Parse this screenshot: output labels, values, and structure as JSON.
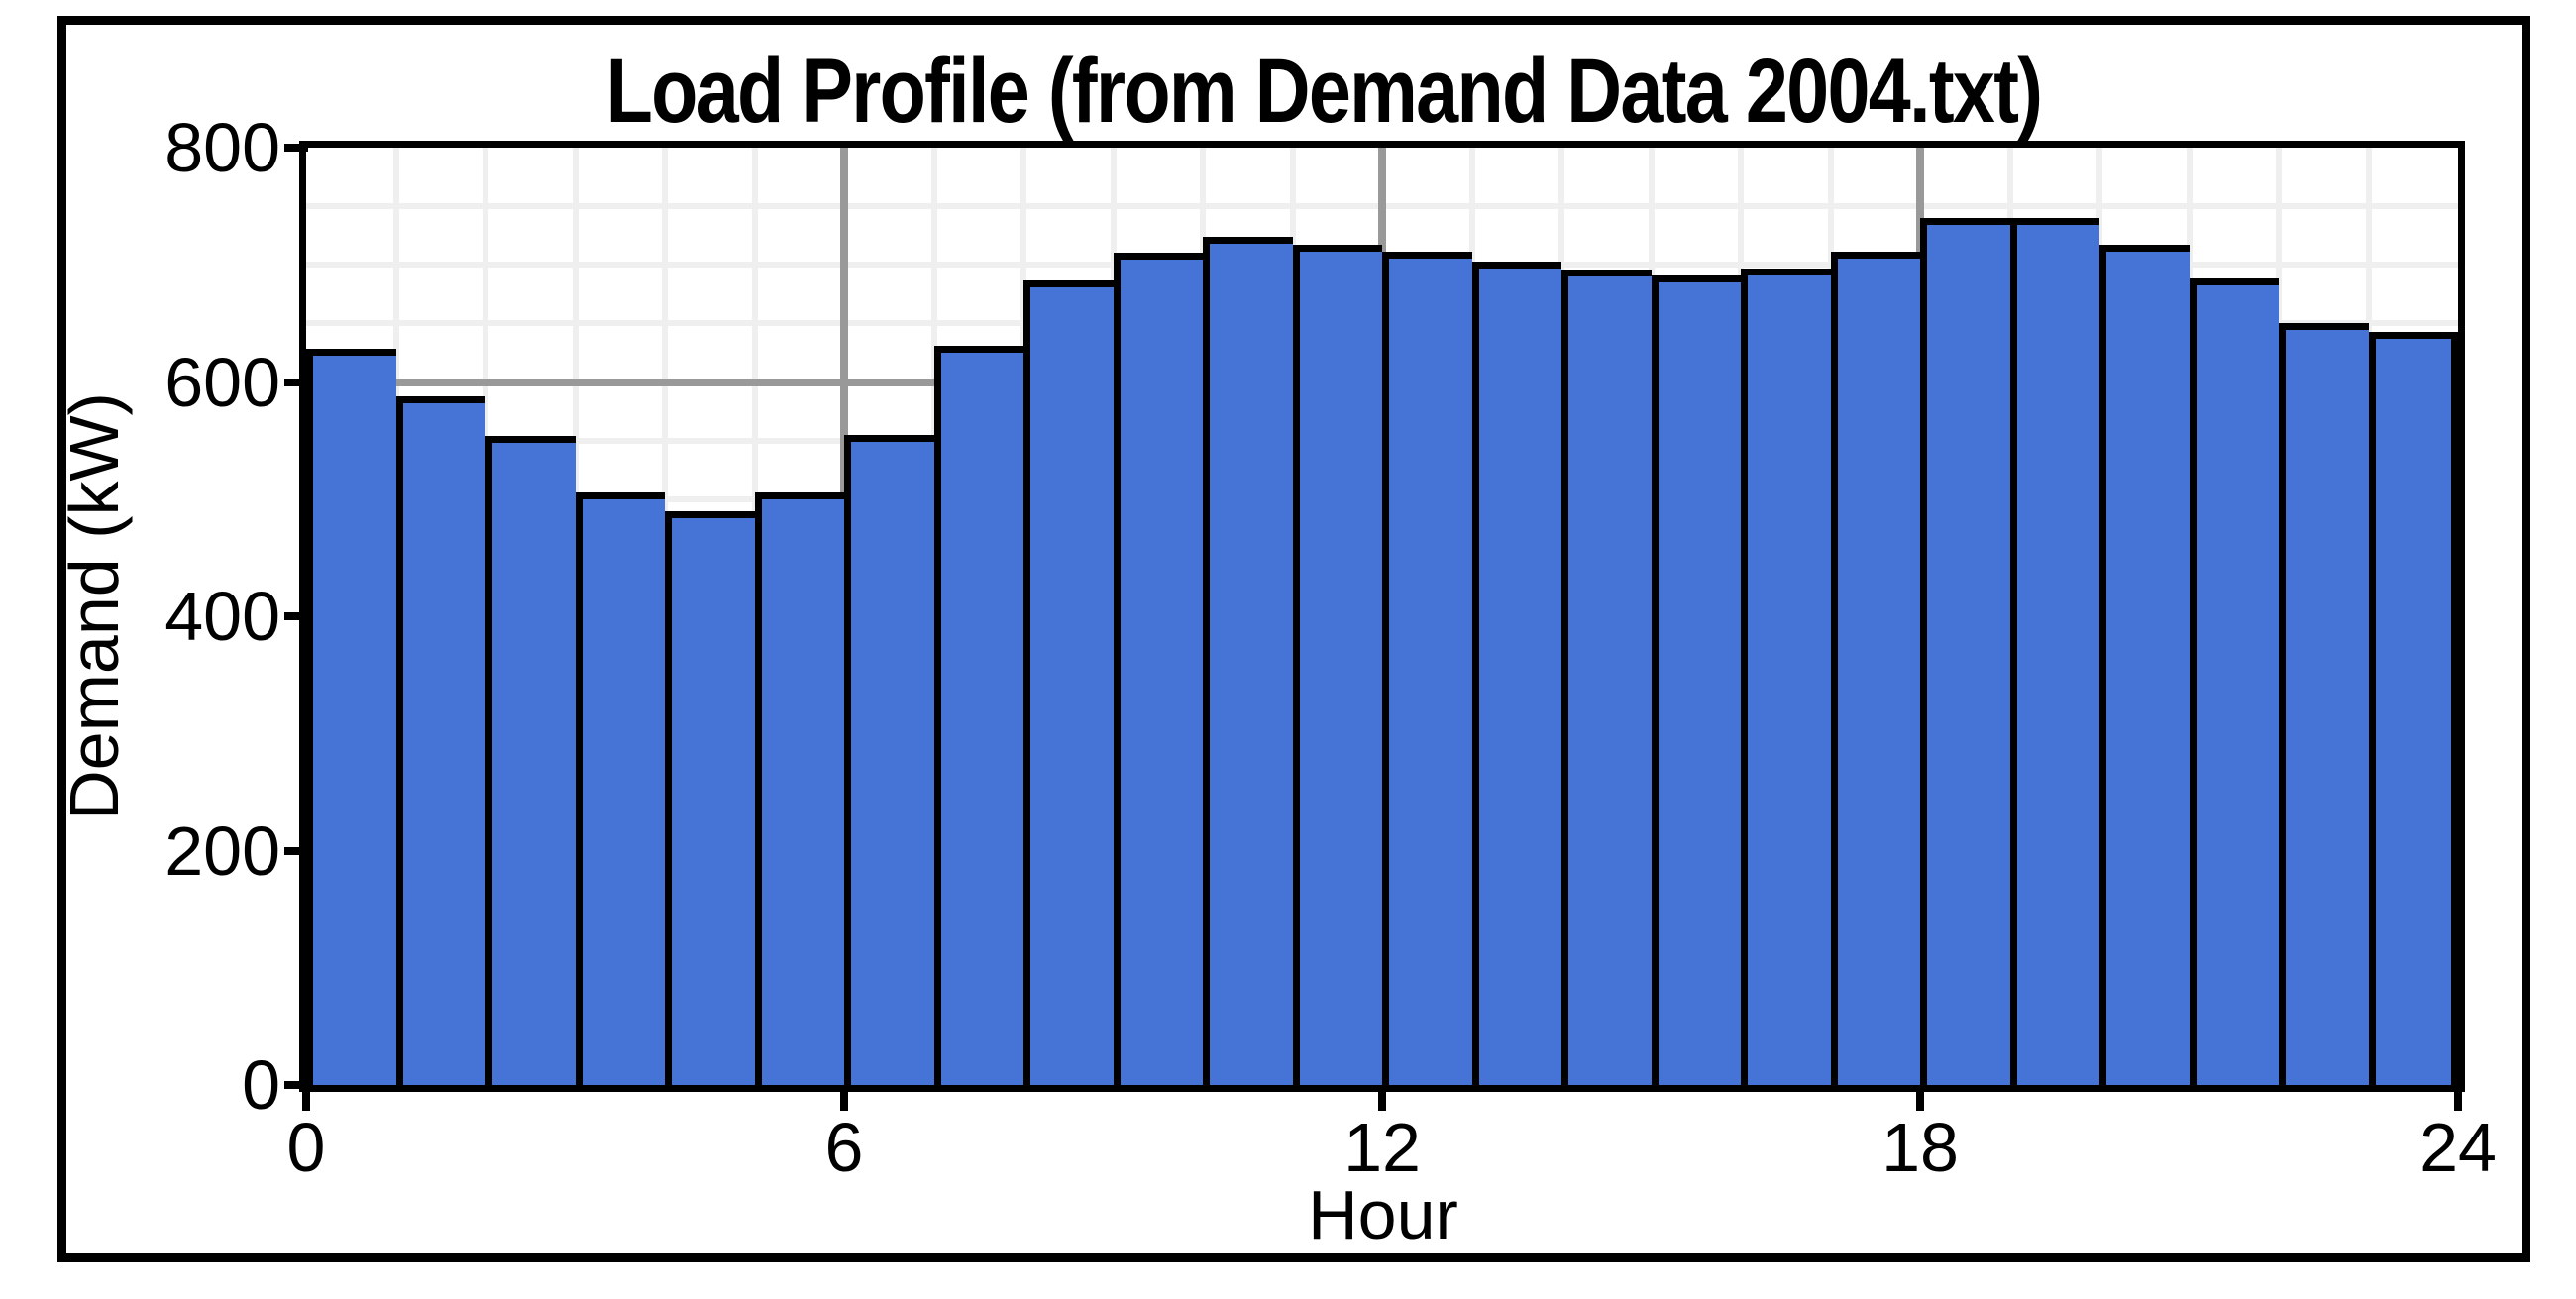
{
  "chart_data": {
    "type": "bar",
    "title": "Load Profile (from Demand Data 2004.txt)",
    "xlabel": "Hour",
    "ylabel": "Demand (kW)",
    "categories_hours": [
      0,
      1,
      2,
      3,
      4,
      5,
      6,
      7,
      8,
      9,
      10,
      11,
      12,
      13,
      14,
      15,
      16,
      17,
      18,
      19,
      20,
      21,
      22,
      23
    ],
    "values": [
      628,
      588,
      554,
      506,
      490,
      506,
      555,
      631,
      687,
      710,
      724,
      717,
      711,
      703,
      696,
      691,
      697,
      711,
      740,
      740,
      717,
      688,
      650,
      643
    ],
    "xlim": [
      0,
      24
    ],
    "ylim": [
      0,
      800
    ],
    "x_ticks": [
      0,
      6,
      12,
      18,
      24
    ],
    "y_ticks": [
      0,
      200,
      400,
      600,
      800
    ],
    "minor_grid_step_x_hours": 1,
    "minor_grid_step_y_kw": 50,
    "major_grid_x_hours": [
      6,
      12,
      18
    ],
    "major_grid_y_kw": [
      600
    ],
    "grid": "on",
    "legend": "none",
    "colors": {
      "bar_fill": "#4573d6",
      "bar_border": "#000000",
      "minor_grid": "#efefef",
      "major_grid": "#999999",
      "axis": "#000000",
      "background": "#ffffff"
    }
  }
}
